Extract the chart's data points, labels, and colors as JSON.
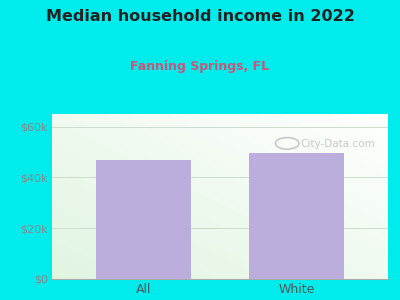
{
  "title": "Median household income in 2022",
  "subtitle": "Fanning Springs, FL",
  "categories": [
    "All",
    "White"
  ],
  "values": [
    47000,
    49500
  ],
  "bar_color": "#bbaedd",
  "title_color": "#222222",
  "subtitle_color": "#cc5577",
  "background_color": "#00ecec",
  "yticks": [
    0,
    20000,
    40000,
    60000
  ],
  "ytick_labels": [
    "$0",
    "$20k",
    "$40k",
    "$60k"
  ],
  "ylim": [
    0,
    65000
  ],
  "watermark": "City-Data.com",
  "tick_color": "#888888",
  "grid_color": "#ccddcc"
}
